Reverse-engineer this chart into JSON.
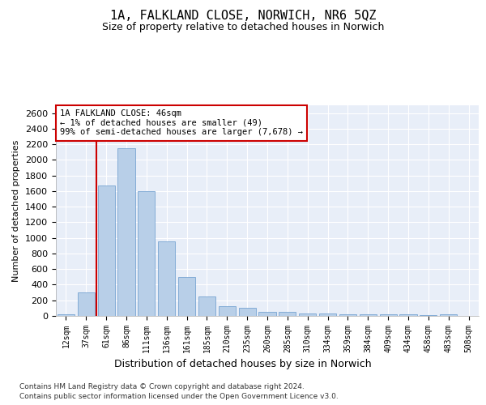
{
  "title": "1A, FALKLAND CLOSE, NORWICH, NR6 5QZ",
  "subtitle": "Size of property relative to detached houses in Norwich",
  "xlabel": "Distribution of detached houses by size in Norwich",
  "ylabel": "Number of detached properties",
  "footnote1": "Contains HM Land Registry data © Crown copyright and database right 2024.",
  "footnote2": "Contains public sector information licensed under the Open Government Licence v3.0.",
  "annotation_title": "1A FALKLAND CLOSE: 46sqm",
  "annotation_line2": "← 1% of detached houses are smaller (49)",
  "annotation_line3": "99% of semi-detached houses are larger (7,678) →",
  "bar_color": "#b8cfe8",
  "bar_edge_color": "#6699cc",
  "vline_color": "#cc0000",
  "vline_x": 1.5,
  "categories": [
    "12sqm",
    "37sqm",
    "61sqm",
    "86sqm",
    "111sqm",
    "136sqm",
    "161sqm",
    "185sqm",
    "210sqm",
    "235sqm",
    "260sqm",
    "285sqm",
    "310sqm",
    "334sqm",
    "359sqm",
    "384sqm",
    "409sqm",
    "434sqm",
    "458sqm",
    "483sqm",
    "508sqm"
  ],
  "values": [
    25,
    300,
    1670,
    2150,
    1600,
    960,
    500,
    250,
    125,
    100,
    50,
    50,
    30,
    30,
    20,
    20,
    20,
    20,
    10,
    20,
    5
  ],
  "ylim": [
    0,
    2700
  ],
  "yticks": [
    0,
    200,
    400,
    600,
    800,
    1000,
    1200,
    1400,
    1600,
    1800,
    2000,
    2200,
    2400,
    2600
  ],
  "bg_color": "#e8eef8",
  "grid_color": "#ffffff",
  "annotation_box_color": "#cc0000",
  "title_fontsize": 11,
  "subtitle_fontsize": 9,
  "ylabel_fontsize": 8,
  "xlabel_fontsize": 9,
  "tick_fontsize": 8,
  "xtick_fontsize": 7
}
